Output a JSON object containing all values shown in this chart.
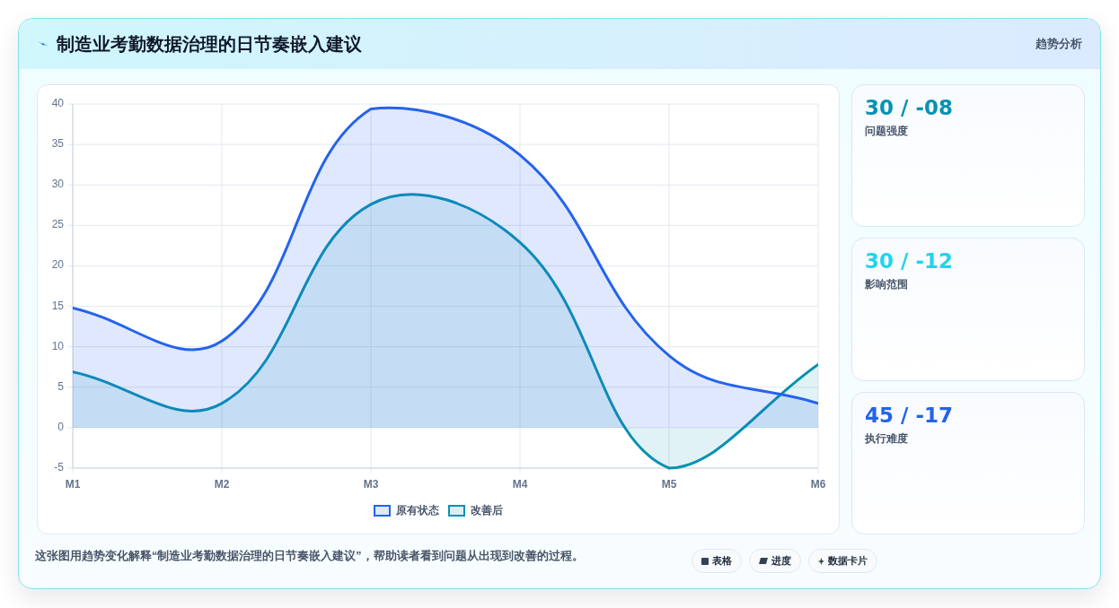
{
  "chart_data": [
    {
      "type": "area",
      "title": "制造业考勤数据治理的日节奏嵌入建议",
      "categories": [
        "M1",
        "M2",
        "M3",
        "M4",
        "M5",
        "M6"
      ],
      "series": [
        {
          "name": "原有状态",
          "color": "#2563eb",
          "values": [
            14.8,
            10.7,
            39.4,
            33.7,
            8.9,
            3
          ]
        },
        {
          "name": "改善后",
          "color": "#0891b2",
          "values": [
            6.9,
            3,
            27.6,
            22.9,
            -5,
            7.8
          ]
        }
      ],
      "ylim": [
        -5,
        40
      ],
      "yticks": [
        -5,
        0,
        5,
        10,
        15,
        20,
        25,
        30,
        35,
        40
      ],
      "grid": true,
      "legend": "bottom",
      "annotations": [
        "这张图用趋势变化解释“制造业考勤数据治理的日节奏嵌入建议”，帮助读者看到问题从出现到改善的过程。",
        "表格",
        "进度",
        "数据卡片"
      ]
    },
    {
      "type": "other",
      "title": "趋势分析",
      "categories": [
        "问题强度",
        "影响范围",
        "执行难度"
      ],
      "value_labels": [
        "30 / -08",
        "30 / -12",
        "45 / -17"
      ]
    }
  ]
}
